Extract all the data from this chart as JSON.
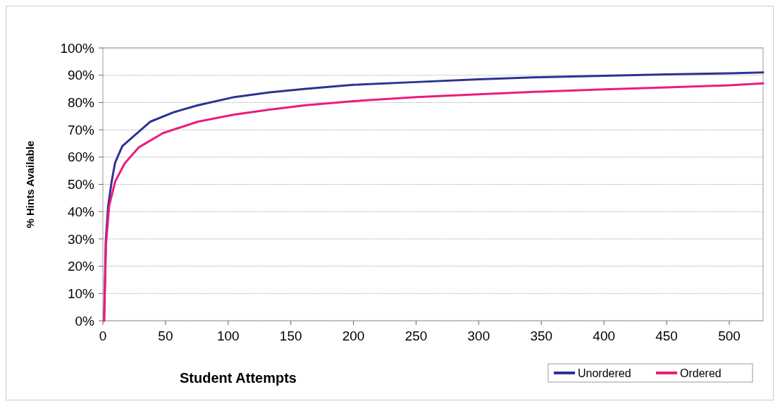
{
  "chart_data": {
    "type": "line",
    "xlabel": "Student Attempts",
    "ylabel": "% Hints Available",
    "xlim": [
      0,
      527
    ],
    "xticks": [
      0,
      50,
      100,
      150,
      200,
      250,
      300,
      350,
      400,
      450,
      500
    ],
    "ylim": [
      0,
      100
    ],
    "yticks": [
      {
        "value": 0,
        "label": "0%"
      },
      {
        "value": 10,
        "label": "10%"
      },
      {
        "value": 20,
        "label": "20%"
      },
      {
        "value": 30,
        "label": "30%"
      },
      {
        "value": 40,
        "label": "40%"
      },
      {
        "value": 50,
        "label": "50%"
      },
      {
        "value": 60,
        "label": "60%"
      },
      {
        "value": 70,
        "label": "70%"
      },
      {
        "value": 80,
        "label": "80%"
      },
      {
        "value": 90,
        "label": "90%"
      },
      {
        "value": 100,
        "label": "100%"
      }
    ],
    "grid": "y",
    "legend": "bottom right",
    "marker": "none",
    "line_style": "solid",
    "series": [
      {
        "name": "Unordered",
        "color": "#2e3192",
        "x": [
          1,
          2.3,
          4.2,
          7,
          9.8,
          15.5,
          23,
          38,
          57,
          76,
          105,
          133,
          162,
          200,
          250,
          300,
          350,
          400,
          450,
          500,
          527
        ],
        "values": [
          0,
          29,
          42,
          51,
          58,
          64,
          67,
          73,
          76.5,
          79,
          82,
          83.7,
          85,
          86.5,
          87.5,
          88.5,
          89.3,
          89.8,
          90.3,
          90.7,
          91
        ]
      },
      {
        "name": "Ordered",
        "color": "#ec1c79",
        "x": [
          1,
          2.5,
          5,
          9.8,
          17.4,
          28.8,
          48,
          76,
          105,
          133,
          162,
          200,
          250,
          300,
          350,
          400,
          450,
          500,
          527
        ],
        "values": [
          0,
          28,
          42,
          51,
          57.7,
          63.6,
          68.8,
          73,
          75.6,
          77.4,
          79,
          80.5,
          82,
          83,
          84,
          84.8,
          85.5,
          86.3,
          87
        ]
      }
    ]
  }
}
